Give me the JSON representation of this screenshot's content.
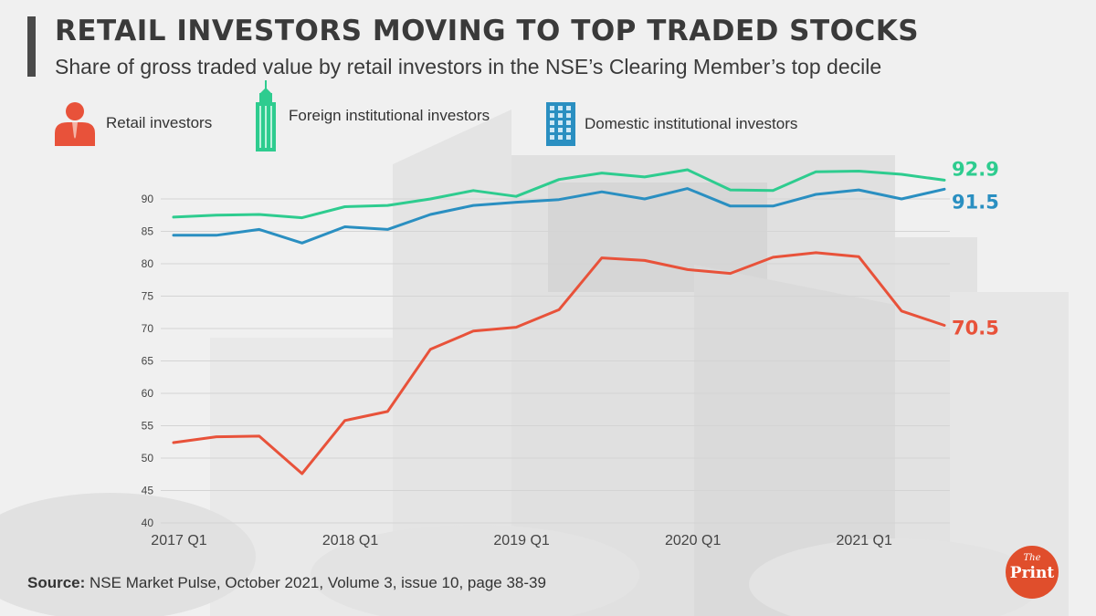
{
  "header": {
    "title": "RETAIL INVESTORS MOVING TO TOP TRADED STOCKS",
    "subtitle": "Share of gross traded value by retail investors in the NSE’s Clearing Member’s top decile"
  },
  "legend": [
    {
      "label": "Retail investors",
      "icon": "person-icon",
      "color": "#e8523a"
    },
    {
      "label": "Foreign institutional investors",
      "icon": "skyscraper-icon",
      "color": "#2ecc8f"
    },
    {
      "label": "Domestic institutional investors",
      "icon": "office-building-icon",
      "color": "#2a8fc1"
    }
  ],
  "chart_data": {
    "type": "line",
    "title": "RETAIL INVESTORS MOVING TO TOP TRADED STOCKS",
    "xlabel": "",
    "ylabel": "",
    "x_tick_labels": [
      "2017 Q1",
      "2018 Q1",
      "2019 Q1",
      "2020 Q1",
      "2021 Q1"
    ],
    "x_tick_indices": [
      0,
      4,
      8,
      12,
      16
    ],
    "num_points": 19,
    "ylim": [
      40,
      92
    ],
    "yticks": [
      40,
      45,
      50,
      55,
      60,
      65,
      70,
      75,
      80,
      85,
      90
    ],
    "grid": true,
    "series": [
      {
        "name": "Foreign institutional investors",
        "color": "#2ecc8f",
        "end_label": "92.9",
        "values": [
          87.2,
          87.5,
          87.6,
          87.1,
          88.8,
          89.0,
          90.0,
          91.3,
          90.4,
          93.0,
          94.0,
          93.4,
          94.5,
          91.4,
          91.3,
          94.2,
          94.3,
          93.8,
          92.9
        ]
      },
      {
        "name": "Domestic institutional investors",
        "color": "#2a8fc1",
        "end_label": "91.5",
        "values": [
          84.4,
          84.4,
          85.3,
          83.2,
          85.7,
          85.3,
          87.6,
          89.0,
          89.5,
          89.9,
          91.1,
          90.0,
          91.6,
          88.9,
          88.9,
          90.7,
          91.4,
          90.0,
          91.5
        ]
      },
      {
        "name": "Retail investors",
        "color": "#e8523a",
        "end_label": "70.5",
        "values": [
          52.4,
          53.3,
          53.4,
          47.6,
          55.8,
          57.2,
          66.8,
          69.6,
          70.2,
          72.9,
          80.9,
          80.5,
          79.1,
          78.5,
          81.0,
          81.7,
          81.1,
          72.7,
          70.5
        ]
      }
    ]
  },
  "footer": {
    "source_label": "Source:",
    "source_text": "NSE Market Pulse, October 2021, Volume 3, issue 10, page 38-39",
    "logo_the": "The",
    "logo_print": "Print"
  }
}
